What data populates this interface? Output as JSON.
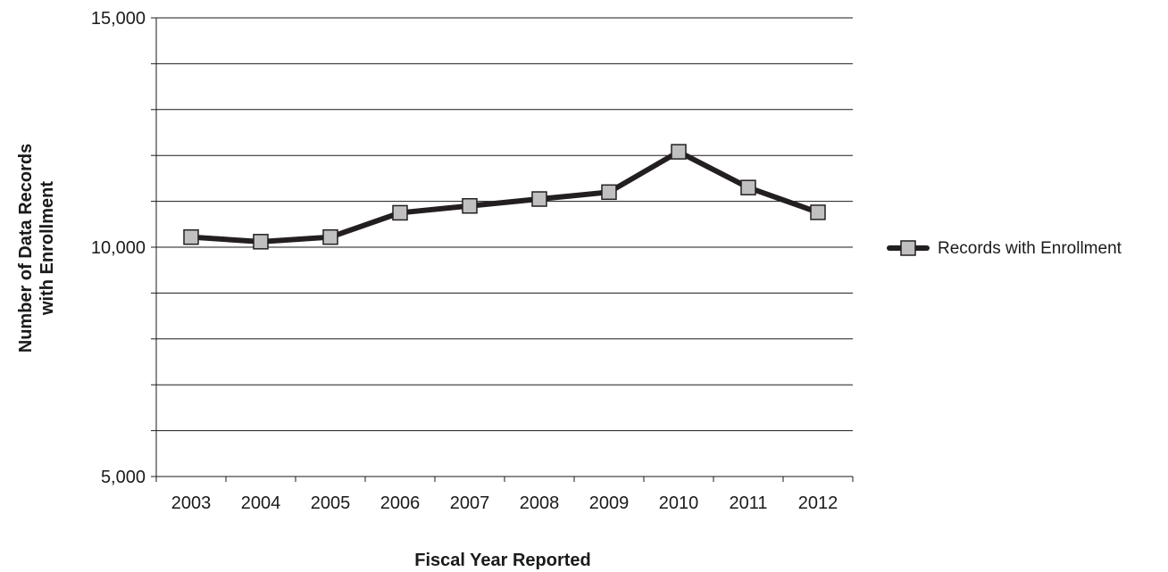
{
  "chart_data": {
    "type": "line",
    "title": "",
    "xlabel": "Fiscal Year Reported",
    "ylabel": [
      "Number of Data Records",
      "with Enrollment"
    ],
    "categories": [
      "2003",
      "2004",
      "2005",
      "2006",
      "2007",
      "2008",
      "2009",
      "2010",
      "2011",
      "2012"
    ],
    "ylim": [
      5000,
      15000
    ],
    "yticks": [
      {
        "value": 5000,
        "label": "5,000"
      },
      {
        "value": 10000,
        "label": "10,000"
      },
      {
        "value": 15000,
        "label": "15,000"
      }
    ],
    "grid_step": 1000,
    "grid": true,
    "legend_position": "right",
    "series": [
      {
        "name": "Records with Enrollment",
        "values": [
          10220,
          10120,
          10220,
          10750,
          10900,
          11050,
          11200,
          12080,
          11300,
          10760
        ],
        "line_color": "#231f20",
        "marker_color": "#c0c0c0",
        "marker": "square"
      }
    ]
  }
}
